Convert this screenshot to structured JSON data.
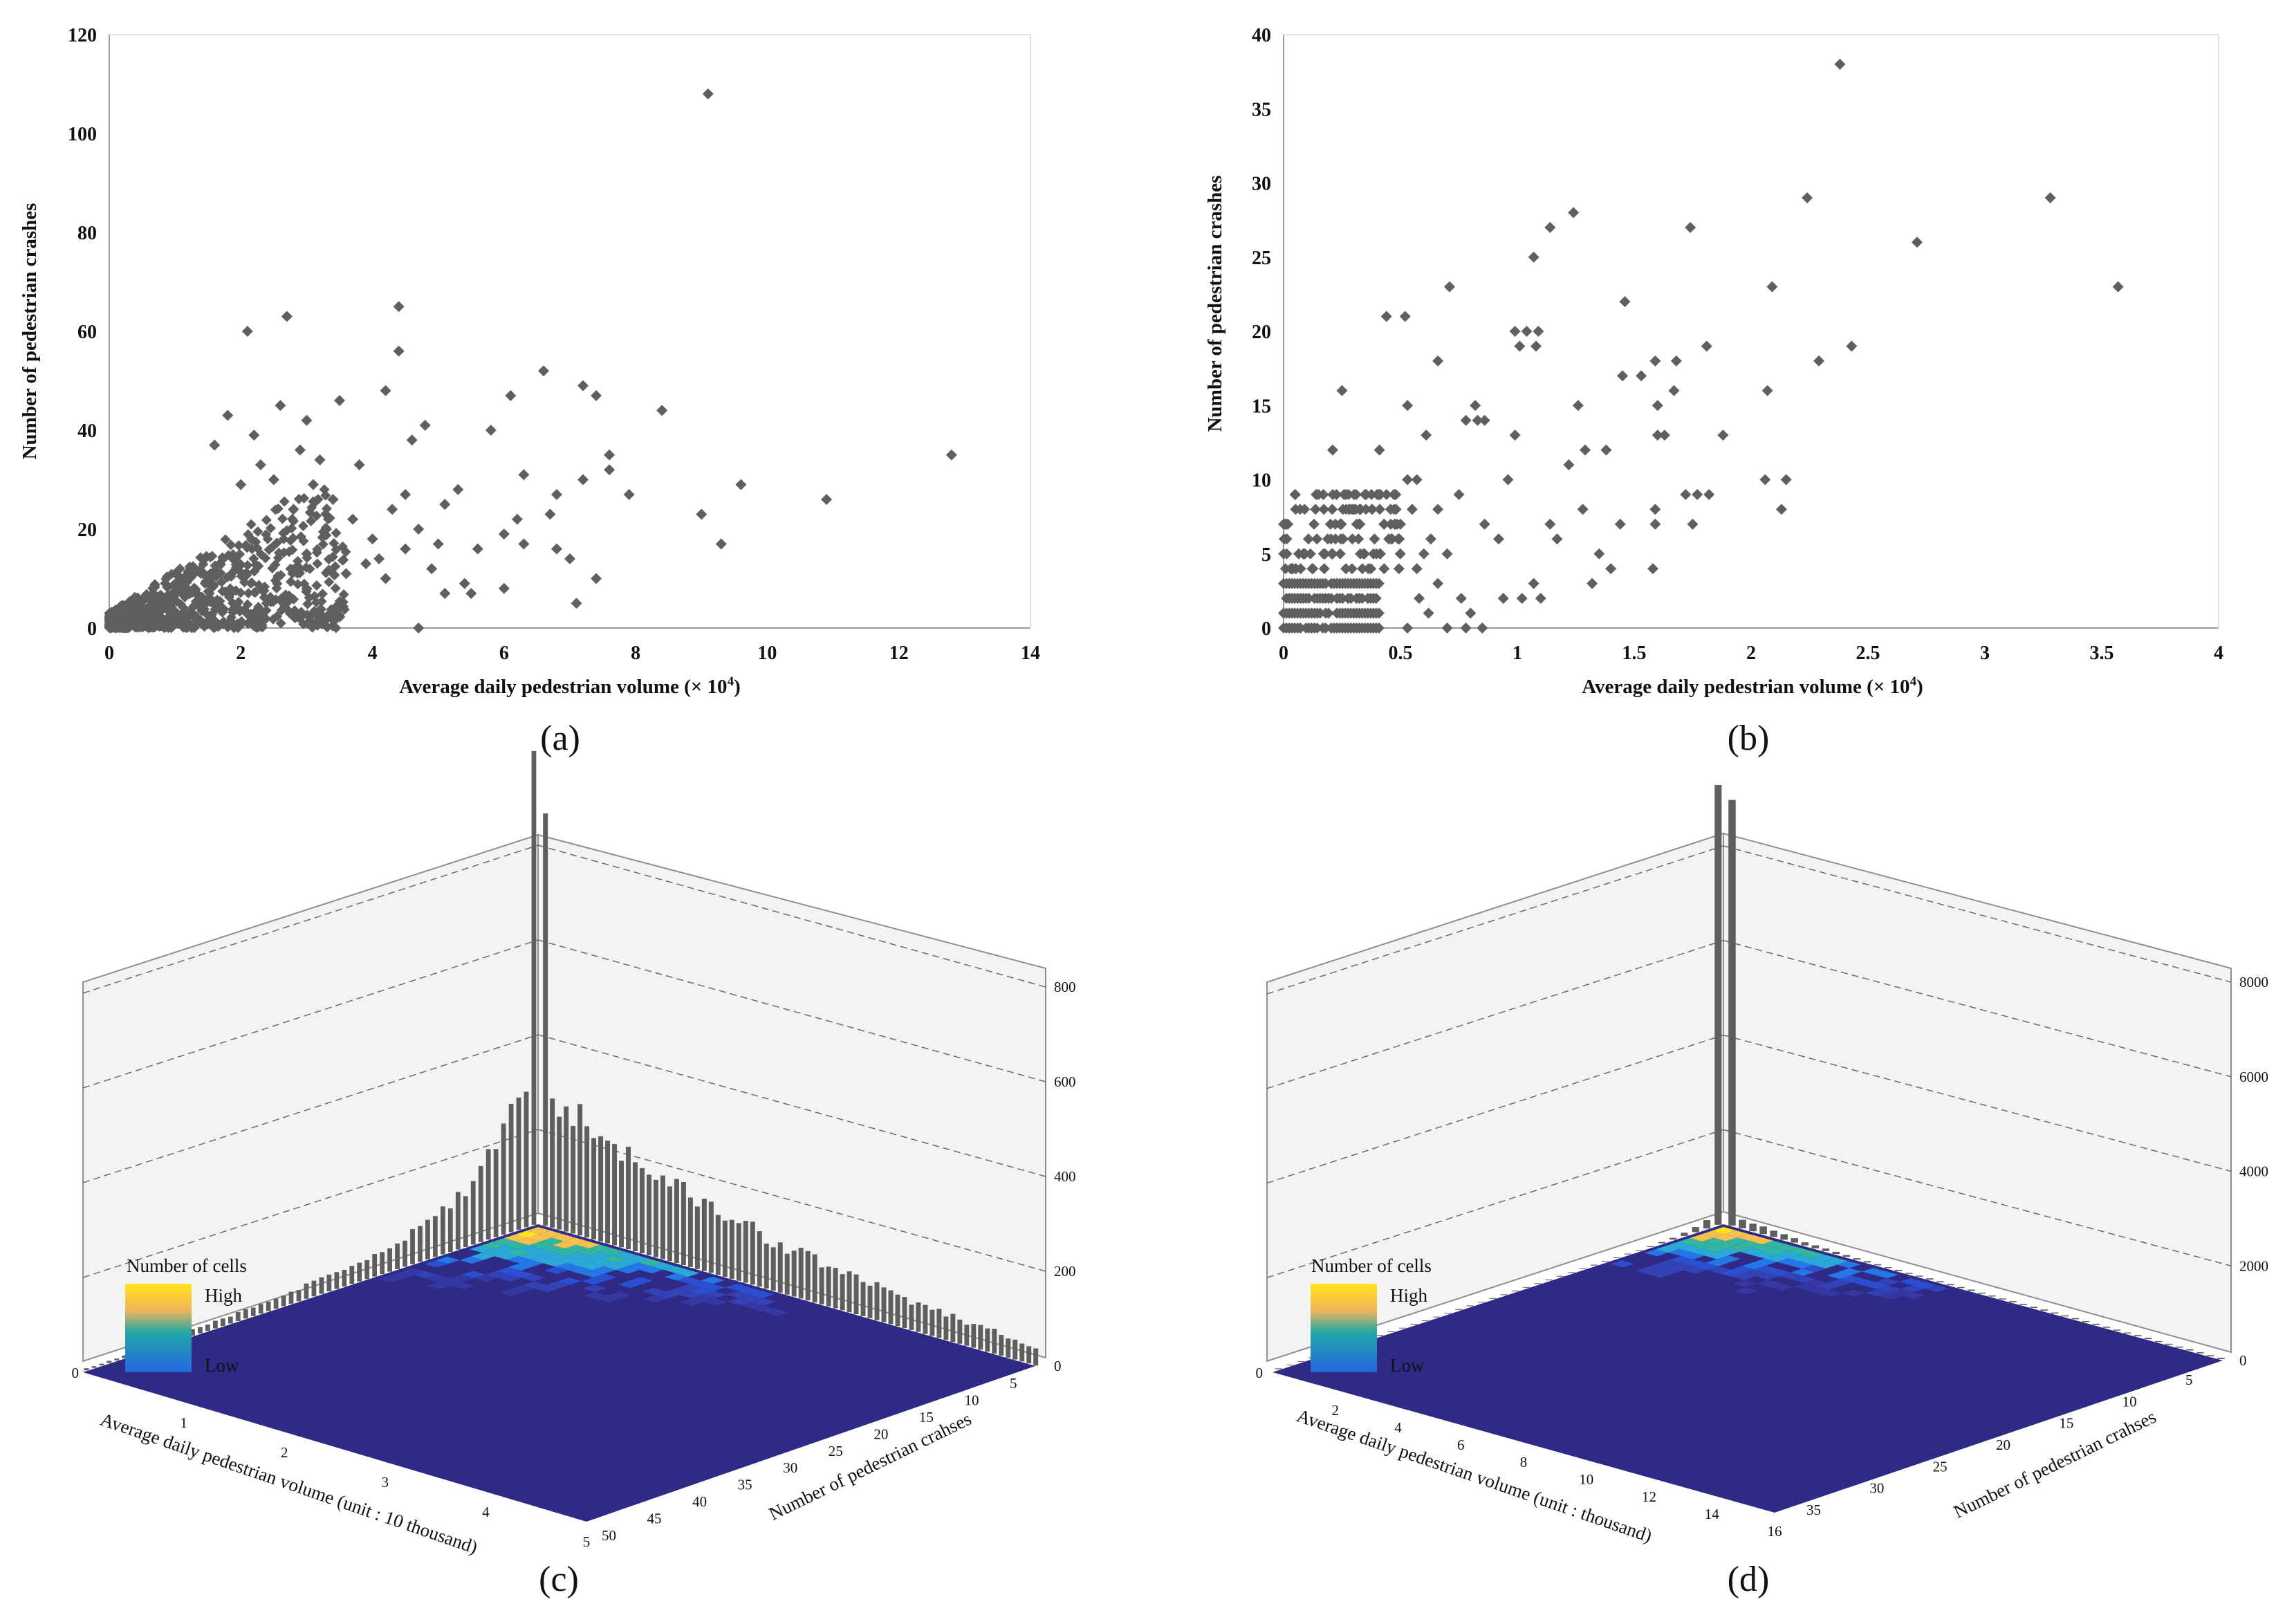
{
  "colors": {
    "marker": "#5f5f5f",
    "bar": "#5e5e5e",
    "floor": "#2e2a86",
    "wall": "#f3f4f1",
    "heat_low": "#2a4fd0",
    "heat_mid": "#2aa8a0",
    "heat_high": "#ffe31a"
  },
  "chart_data": [
    {
      "panel": "(a)",
      "type": "scatter",
      "xlabel": "Average daily pedestrian volume (× 10",
      "xlabel_sup": "4",
      "xlabel_end": ")",
      "ylabel": "Number of pedestrian crashes",
      "xlim": [
        0,
        14
      ],
      "ylim": [
        0,
        120
      ],
      "xticks": [
        "0",
        "2",
        "4",
        "6",
        "8",
        "10",
        "12",
        "14"
      ],
      "yticks": [
        "0",
        "20",
        "40",
        "60",
        "80",
        "100",
        "120"
      ],
      "cluster_x_max": 3.6,
      "cluster_y_max": 28,
      "cluster_points": 850,
      "points": [
        [
          9.1,
          108
        ],
        [
          2.7,
          63
        ],
        [
          4.4,
          65
        ],
        [
          2.1,
          60
        ],
        [
          4.4,
          56
        ],
        [
          6.6,
          52
        ],
        [
          7.2,
          49
        ],
        [
          4.2,
          48
        ],
        [
          6.1,
          47
        ],
        [
          7.4,
          47
        ],
        [
          3.5,
          46
        ],
        [
          8.4,
          44
        ],
        [
          2.6,
          45
        ],
        [
          1.8,
          43
        ],
        [
          3.0,
          42
        ],
        [
          4.8,
          41
        ],
        [
          5.8,
          40
        ],
        [
          2.2,
          39
        ],
        [
          4.6,
          38
        ],
        [
          1.6,
          37
        ],
        [
          7.6,
          35
        ],
        [
          12.8,
          35
        ],
        [
          7.6,
          32
        ],
        [
          6.3,
          31
        ],
        [
          2.9,
          36
        ],
        [
          3.2,
          34
        ],
        [
          3.8,
          33
        ],
        [
          7.2,
          30
        ],
        [
          9.6,
          29
        ],
        [
          5.3,
          28
        ],
        [
          4.5,
          27
        ],
        [
          7.9,
          27
        ],
        [
          6.8,
          27
        ],
        [
          10.9,
          26
        ],
        [
          5.1,
          25
        ],
        [
          4.3,
          24
        ],
        [
          6.7,
          23
        ],
        [
          9.0,
          23
        ],
        [
          6.2,
          22
        ],
        [
          4.7,
          20
        ],
        [
          6.0,
          19
        ],
        [
          6.3,
          17
        ],
        [
          9.3,
          17
        ],
        [
          5.6,
          16
        ],
        [
          6.8,
          16
        ],
        [
          5.0,
          17
        ],
        [
          7.0,
          14
        ],
        [
          4.1,
          14
        ],
        [
          3.9,
          13
        ],
        [
          7.4,
          10
        ],
        [
          3.6,
          11
        ],
        [
          6.0,
          8
        ],
        [
          5.1,
          7
        ],
        [
          5.5,
          7
        ],
        [
          7.1,
          5
        ],
        [
          4.7,
          0
        ],
        [
          3.0,
          15
        ],
        [
          3.3,
          20
        ],
        [
          2.5,
          30
        ],
        [
          2.8,
          24
        ],
        [
          3.7,
          22
        ],
        [
          4.0,
          18
        ],
        [
          3.4,
          26
        ],
        [
          2.3,
          33
        ],
        [
          2.0,
          29
        ],
        [
          4.9,
          12
        ],
        [
          5.4,
          9
        ],
        [
          4.2,
          10
        ],
        [
          4.5,
          16
        ],
        [
          3.1,
          29
        ]
      ]
    },
    {
      "panel": "(b)",
      "type": "scatter",
      "xlabel": "Average daily pedestrian volume (× 10",
      "xlabel_sup": "4",
      "xlabel_end": ")",
      "ylabel": "Number of pedestrian crashes",
      "xlim": [
        0,
        4
      ],
      "ylim": [
        0,
        40
      ],
      "xticks": [
        "0",
        "0.5",
        "1",
        "1.5",
        "2",
        "2.5",
        "3",
        "3.5",
        "4"
      ],
      "yticks": [
        "0",
        "5",
        "10",
        "15",
        "20",
        "25",
        "30",
        "35",
        "40"
      ],
      "grid_x_max": 0.42,
      "grid_rows": [
        0,
        1,
        2,
        3
      ],
      "points": [
        [
          2.38,
          38
        ],
        [
          3.28,
          29
        ],
        [
          2.24,
          29
        ],
        [
          1.24,
          28
        ],
        [
          1.14,
          27
        ],
        [
          1.74,
          27
        ],
        [
          2.71,
          26
        ],
        [
          1.07,
          25
        ],
        [
          0.71,
          23
        ],
        [
          2.09,
          23
        ],
        [
          3.57,
          23
        ],
        [
          0.44,
          21
        ],
        [
          0.52,
          21
        ],
        [
          0.99,
          20
        ],
        [
          1.04,
          20
        ],
        [
          1.09,
          20
        ],
        [
          1.46,
          22
        ],
        [
          1.01,
          19
        ],
        [
          1.08,
          19
        ],
        [
          1.81,
          19
        ],
        [
          2.43,
          19
        ],
        [
          0.66,
          18
        ],
        [
          1.59,
          18
        ],
        [
          1.68,
          18
        ],
        [
          2.29,
          18
        ],
        [
          1.45,
          17
        ],
        [
          1.53,
          17
        ],
        [
          0.25,
          16
        ],
        [
          1.67,
          16
        ],
        [
          2.07,
          16
        ],
        [
          0.53,
          15
        ],
        [
          0.82,
          15
        ],
        [
          1.26,
          15
        ],
        [
          1.6,
          15
        ],
        [
          0.78,
          14
        ],
        [
          0.86,
          14
        ],
        [
          0.83,
          14
        ],
        [
          0.21,
          12
        ],
        [
          0.41,
          12
        ],
        [
          1.29,
          12
        ],
        [
          1.38,
          12
        ],
        [
          1.88,
          13
        ],
        [
          1.6,
          13
        ],
        [
          1.63,
          13
        ],
        [
          0.61,
          13
        ],
        [
          0.99,
          13
        ],
        [
          2.06,
          10
        ],
        [
          2.15,
          10
        ],
        [
          0.53,
          10
        ],
        [
          0.57,
          10
        ],
        [
          0.96,
          10
        ],
        [
          1.22,
          11
        ],
        [
          2.13,
          8
        ],
        [
          1.72,
          9
        ],
        [
          1.77,
          9
        ],
        [
          1.82,
          9
        ],
        [
          1.59,
          8
        ],
        [
          1.59,
          7
        ],
        [
          1.75,
          7
        ],
        [
          1.28,
          8
        ],
        [
          1.44,
          7
        ],
        [
          0.66,
          8
        ],
        [
          0.75,
          9
        ],
        [
          0.86,
          7
        ],
        [
          0.92,
          6
        ],
        [
          1.14,
          7
        ],
        [
          1.17,
          6
        ],
        [
          1.35,
          5
        ],
        [
          1.58,
          4
        ],
        [
          1.4,
          4
        ],
        [
          1.07,
          3
        ],
        [
          1.32,
          3
        ],
        [
          1.02,
          2
        ],
        [
          1.1,
          2
        ],
        [
          0.94,
          2
        ],
        [
          0.76,
          2
        ],
        [
          0.8,
          1
        ],
        [
          0.7,
          0
        ],
        [
          0.78,
          0
        ],
        [
          0.85,
          0
        ],
        [
          0.57,
          4
        ],
        [
          0.6,
          5
        ],
        [
          0.63,
          6
        ],
        [
          0.5,
          7
        ],
        [
          0.55,
          8
        ],
        [
          0.48,
          9
        ],
        [
          0.45,
          6
        ],
        [
          0.7,
          5
        ],
        [
          0.66,
          3
        ],
        [
          0.58,
          2
        ],
        [
          0.62,
          1
        ],
        [
          0.53,
          0
        ]
      ]
    },
    {
      "panel": "(c)",
      "type": "heatmap",
      "x_axis_label": "Average daily pedestrian volume (unit : 10 thousand)",
      "y_axis_label": "Number of pedestrian crahses",
      "x_ticks": [
        "1",
        "2",
        "3",
        "4",
        "5"
      ],
      "y_ticks": [
        "5",
        "10",
        "15",
        "20",
        "25",
        "30",
        "35",
        "40",
        "45",
        "50"
      ],
      "z_ticks": [
        "0",
        "200",
        "400",
        "600",
        "800"
      ],
      "z_max": 800,
      "left_origin_tick": "0",
      "legend_title": "Number of cells",
      "legend_high": "High",
      "legend_low": "Low",
      "right_peak": 870,
      "left_peak": 1000
    },
    {
      "panel": "(d)",
      "type": "heatmap",
      "x_axis_label": "Average daily pedestrian volume (unit : thousand)",
      "y_axis_label": "Number of pedestrian crahses",
      "x_ticks": [
        "2",
        "4",
        "6",
        "8",
        "10",
        "12",
        "14",
        "16"
      ],
      "y_ticks": [
        "5",
        "10",
        "15",
        "20",
        "25",
        "30",
        "35"
      ],
      "z_ticks": [
        "0",
        "2000",
        "4000",
        "6000",
        "8000"
      ],
      "z_max": 8000,
      "left_origin_tick": "0",
      "legend_title": "Number of cells",
      "legend_high": "High",
      "legend_low": "Low",
      "right_peak": 9000,
      "left_peak": 9300
    }
  ]
}
